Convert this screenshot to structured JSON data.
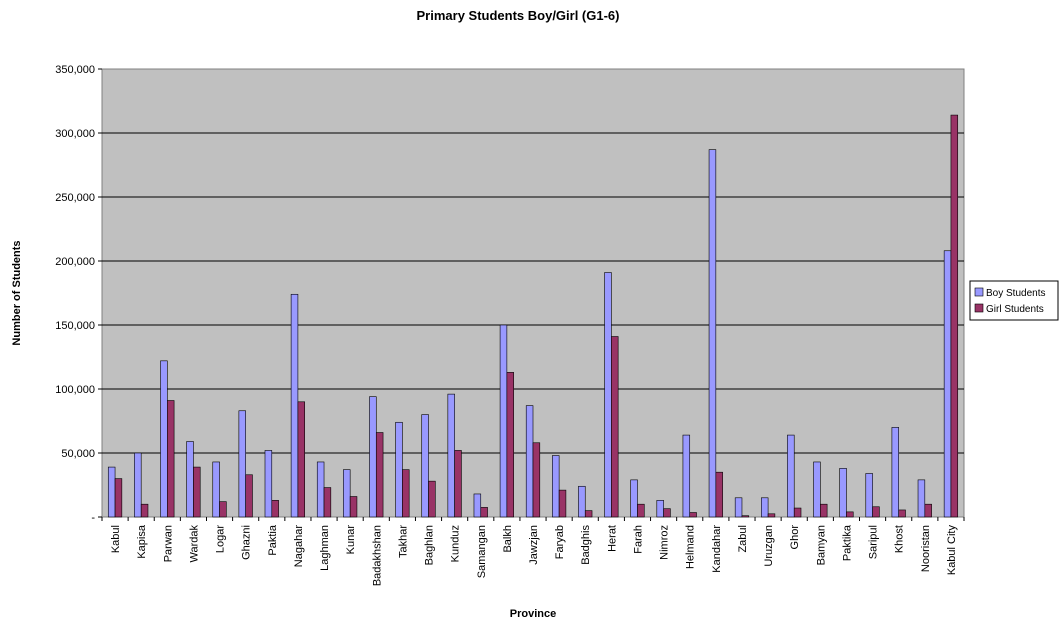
{
  "chart_data": {
    "type": "bar",
    "title": "Primary Students Boy/Girl (G1-6)",
    "xlabel": "Province",
    "ylabel": "Number of Students",
    "ylim": [
      0,
      350000
    ],
    "yticks": [
      0,
      50000,
      100000,
      150000,
      200000,
      250000,
      300000,
      350000
    ],
    "ytick_labels": [
      "-",
      "50,000",
      "100,000",
      "150,000",
      "200,000",
      "250,000",
      "300,000",
      "350,000"
    ],
    "grid": true,
    "plot_background": "#c0c0c0",
    "legend_position": "right",
    "categories": [
      "Kabul",
      "Kapisa",
      "Parwan",
      "Wardak",
      "Logar",
      "Ghazni",
      "Paktia",
      "Nagahar",
      "Laghman",
      "Kunar",
      "Badakhshan",
      "Takhar",
      "Baghlan",
      "Kunduz",
      "Samangan",
      "Balkh",
      "Jawzjan",
      "Faryab",
      "Badghis",
      "Herat",
      "Farah",
      "Nimroz",
      "Helmand",
      "Kandahar",
      "Zabul",
      "Uruzgan",
      "Ghor",
      "Bamyan",
      "Paktika",
      "Saripul",
      "Khost",
      "Nooristan",
      "Kabul City"
    ],
    "series": [
      {
        "name": "Boy Students",
        "color": "#9999ff",
        "values": [
          39000,
          50000,
          122000,
          59000,
          43000,
          83000,
          52000,
          174000,
          43000,
          37000,
          94000,
          74000,
          80000,
          96000,
          18000,
          150000,
          87000,
          48000,
          24000,
          191000,
          29000,
          13000,
          64000,
          287000,
          15000,
          15000,
          64000,
          43000,
          38000,
          34000,
          70000,
          29000,
          208000
        ]
      },
      {
        "name": "Girl Students",
        "color": "#993366",
        "values": [
          30000,
          10000,
          91000,
          39000,
          12000,
          33000,
          13000,
          90000,
          23000,
          16000,
          66000,
          37000,
          28000,
          52000,
          7500,
          113000,
          58000,
          21000,
          5000,
          141000,
          10000,
          6500,
          3500,
          35000,
          1000,
          2500,
          7000,
          10000,
          4000,
          8000,
          5500,
          10000,
          314000
        ]
      }
    ]
  }
}
